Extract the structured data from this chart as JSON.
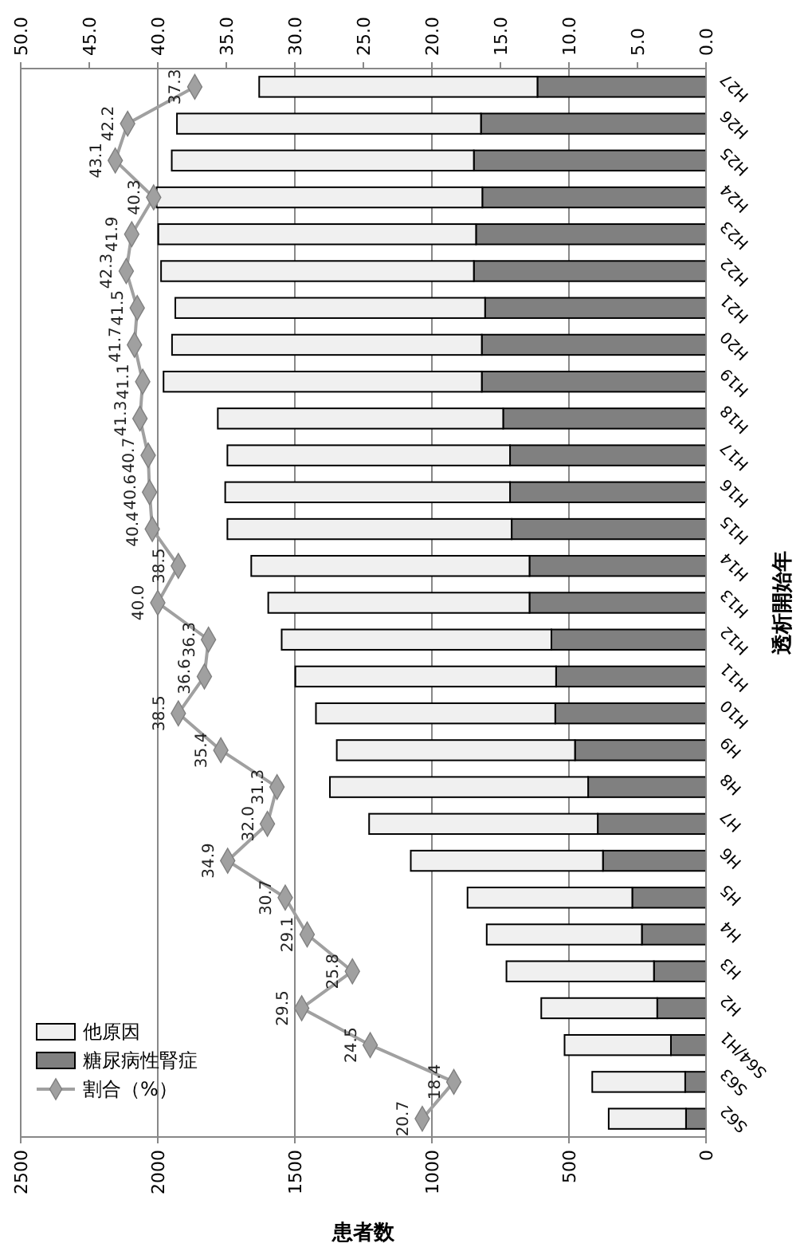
{
  "chart_data": {
    "type": "bar",
    "stacked": true,
    "orientation": "horizontal",
    "xlabel": "患者数",
    "ylabel": "透析開始年",
    "categories": [
      "H27",
      "H26",
      "H25",
      "H24",
      "H23",
      "H22",
      "H21",
      "H20",
      "H19",
      "H18",
      "H17",
      "H16",
      "H15",
      "H14",
      "H13",
      "H12",
      "H11",
      "H10",
      "H9",
      "H8",
      "H7",
      "H6",
      "H5",
      "H4",
      "H3",
      "H2",
      "S64/H1",
      "S63",
      "S62"
    ],
    "series": [
      {
        "name": "糖尿病性腎症",
        "color": "#808080",
        "values": [
          615,
          821,
          847,
          816,
          839,
          847,
          806,
          818,
          818,
          740,
          715,
          715,
          709,
          644,
          644,
          564,
          547,
          550,
          478,
          430,
          395,
          376,
          269,
          234,
          190,
          178,
          128,
          76,
          73
        ]
      },
      {
        "name": "他原因",
        "color": "#f0f0f0",
        "values": [
          1015,
          1109,
          1102,
          1188,
          1159,
          1141,
          1130,
          1130,
          1161,
          1041,
          1031,
          1039,
          1037,
          1015,
          953,
          984,
          951,
          873,
          869,
          942,
          834,
          701,
          601,
          566,
          538,
          423,
          388,
          339,
          282
        ]
      },
      {
        "name": "割合（%）",
        "type": "line",
        "axis": "x2",
        "color": "#a0a0a0",
        "marker": "diamond",
        "value_labels": [
          "37.3",
          "42.2",
          "43.1",
          "40.3",
          "41.9",
          "42.3",
          "41.5",
          "41.7",
          "41.1",
          "41.3",
          "40.7",
          "40.6",
          "40.4",
          "38.5",
          "40.0",
          "36.3",
          "36.6",
          "38.5",
          "35.4",
          "31.3",
          "32.0",
          "34.9",
          "30.7",
          "29.1",
          "25.8",
          "29.5",
          "24.5",
          "18.4",
          "20.7"
        ],
        "values": [
          37.3,
          42.2,
          43.1,
          40.3,
          41.9,
          42.3,
          41.5,
          41.7,
          41.1,
          41.3,
          40.7,
          40.6,
          40.4,
          38.5,
          40.0,
          36.3,
          36.6,
          38.5,
          35.4,
          31.3,
          32.0,
          34.9,
          30.7,
          29.1,
          25.8,
          29.5,
          24.5,
          18.4,
          20.7
        ]
      }
    ],
    "xlim": [
      2500,
      0
    ],
    "xticks": [
      2500,
      2000,
      1500,
      1000,
      500,
      0
    ],
    "x2lim": [
      50,
      0
    ],
    "x2ticks": [
      {
        "value": 50,
        "label": "50.0"
      },
      {
        "value": 45,
        "label": "45.0"
      },
      {
        "value": 40,
        "label": "40.0"
      },
      {
        "value": 35,
        "label": "35.0"
      },
      {
        "value": 30,
        "label": "30.0"
      },
      {
        "value": 25,
        "label": "25.0"
      },
      {
        "value": 20,
        "label": "20.0"
      },
      {
        "value": 15,
        "label": "15.0"
      },
      {
        "value": 10,
        "label": "10.0"
      },
      {
        "value": 5,
        "label": "5.0"
      },
      {
        "value": 0,
        "label": "0.0"
      }
    ],
    "grid": "x",
    "legend": "bottom left"
  }
}
